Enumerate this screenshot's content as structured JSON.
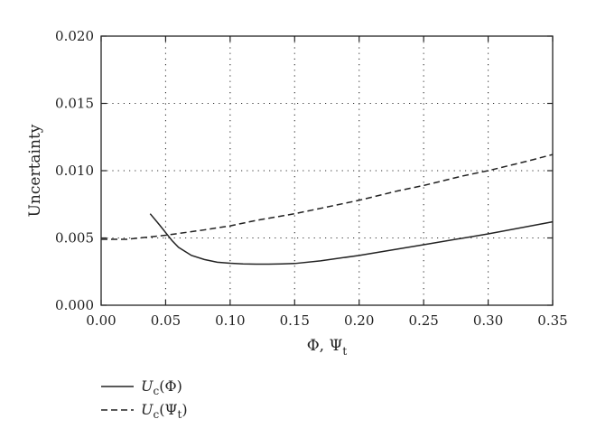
{
  "chart_data": {
    "type": "line",
    "xlabel": {
      "main": "Φ, Ψ",
      "sub": "t"
    },
    "ylabel": "Uncertainty",
    "xlim": [
      0.0,
      0.35
    ],
    "ylim": [
      0.0,
      0.02
    ],
    "x_ticks": [
      "0.00",
      "0.05",
      "0.10",
      "0.15",
      "0.20",
      "0.25",
      "0.30",
      "0.35"
    ],
    "y_ticks": [
      "0.000",
      "0.005",
      "0.010",
      "0.015",
      "0.020"
    ],
    "grid": "dotted",
    "legend_position": "below",
    "series": [
      {
        "legend_main": "U",
        "legend_sub": "c",
        "legend_arg": "(Φ)",
        "legend_arg_sub": "",
        "legend_close": "",
        "style": "solid",
        "color": "#222222",
        "x": [
          0.038,
          0.045,
          0.05,
          0.055,
          0.06,
          0.065,
          0.07,
          0.08,
          0.09,
          0.1,
          0.11,
          0.12,
          0.13,
          0.14,
          0.15,
          0.17,
          0.2,
          0.25,
          0.3,
          0.35
        ],
        "y": [
          0.0068,
          0.006,
          0.0054,
          0.0048,
          0.0043,
          0.004,
          0.0037,
          0.0034,
          0.0032,
          0.00312,
          0.00307,
          0.00305,
          0.00305,
          0.00307,
          0.0031,
          0.0033,
          0.0037,
          0.0045,
          0.0053,
          0.0062
        ]
      },
      {
        "legend_main": "U",
        "legend_sub": "c",
        "legend_arg": "(Ψ",
        "legend_arg_sub": "t",
        "legend_close": ")",
        "style": "dashed",
        "color": "#222222",
        "x": [
          0.0,
          0.02,
          0.05,
          0.08,
          0.1,
          0.12,
          0.15,
          0.18,
          0.2,
          0.23,
          0.25,
          0.28,
          0.3,
          0.33,
          0.35
        ],
        "y": [
          0.0049,
          0.0049,
          0.0052,
          0.0056,
          0.0059,
          0.0063,
          0.0068,
          0.0074,
          0.0078,
          0.0085,
          0.0089,
          0.0096,
          0.01,
          0.0107,
          0.0112
        ]
      }
    ]
  }
}
